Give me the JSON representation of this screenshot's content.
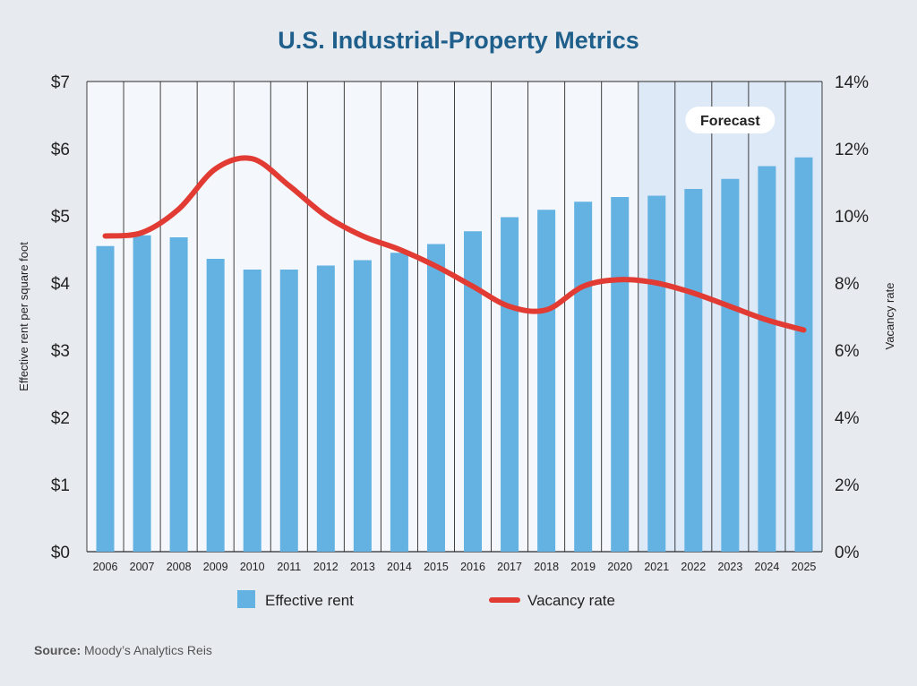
{
  "chart_data": {
    "type": "bar+line",
    "title": "U.S. Industrial-Property Metrics",
    "categories": [
      "2006",
      "2007",
      "2008",
      "2009",
      "2010",
      "2011",
      "2012",
      "2013",
      "2014",
      "2015",
      "2016",
      "2017",
      "2018",
      "2019",
      "2020",
      "2021",
      "2022",
      "2023",
      "2024",
      "2025"
    ],
    "series": [
      {
        "name": "Effective rent",
        "type": "bar",
        "axis": "left",
        "color": "#63b2e2",
        "values": [
          4.55,
          4.71,
          4.68,
          4.36,
          4.2,
          4.2,
          4.26,
          4.34,
          4.45,
          4.58,
          4.77,
          4.98,
          5.09,
          5.21,
          5.28,
          5.3,
          5.4,
          5.55,
          5.74,
          5.87
        ]
      },
      {
        "name": "Vacancy rate",
        "type": "line",
        "axis": "right",
        "color": "#e23b33",
        "values": [
          9.4,
          9.5,
          10.2,
          11.4,
          11.7,
          10.9,
          10.0,
          9.4,
          9.0,
          8.5,
          7.9,
          7.3,
          7.2,
          7.9,
          8.1,
          8.0,
          7.7,
          7.3,
          6.9,
          6.6
        ]
      }
    ],
    "ylabel_left": "Effective rent per square foot",
    "ylabel_right": "Vacancy rate",
    "ylim_left": [
      0,
      7
    ],
    "ylim_right": [
      0,
      14
    ],
    "yticks_left": [
      "$0",
      "$1",
      "$2",
      "$3",
      "$4",
      "$5",
      "$6",
      "$7"
    ],
    "yticks_right": [
      "0%",
      "2%",
      "4%",
      "6%",
      "8%",
      "10%",
      "12%",
      "14%"
    ],
    "forecast_label": "Forecast",
    "forecast_start": "2021",
    "grid": "vertical",
    "legend_position": "bottom",
    "source_label": "Source:",
    "source_text": "Moody’s Analytics Reis"
  }
}
